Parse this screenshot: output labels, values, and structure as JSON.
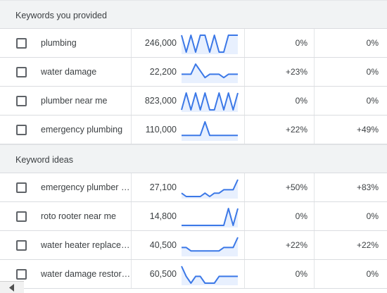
{
  "sections": [
    {
      "title": "Keywords you provided",
      "rows": [
        {
          "keyword": "plumbing",
          "volume": "246,000",
          "change1": "0%",
          "change2": "0%",
          "trend": [
            5,
            0,
            5,
            0,
            5,
            5,
            0,
            5,
            0,
            0,
            5,
            5,
            5
          ]
        },
        {
          "keyword": "water damage",
          "volume": "22,200",
          "change1": "+23%",
          "change2": "0%",
          "trend": [
            2,
            2,
            2,
            5,
            3,
            1,
            2,
            2,
            2,
            1,
            2,
            2,
            2
          ]
        },
        {
          "keyword": "plumber near me",
          "volume": "823,000",
          "change1": "0%",
          "change2": "0%",
          "trend": [
            0,
            5,
            0,
            5,
            0,
            5,
            0,
            0,
            5,
            0,
            5,
            0,
            5
          ]
        },
        {
          "keyword": "emergency plumbing",
          "volume": "110,000",
          "change1": "+22%",
          "change2": "+49%",
          "trend": [
            1,
            1,
            1,
            1,
            1,
            5,
            1,
            1,
            1,
            1,
            1,
            1,
            1
          ]
        }
      ]
    },
    {
      "title": "Keyword ideas",
      "rows": [
        {
          "keyword": "emergency plumber …",
          "volume": "27,100",
          "change1": "+50%",
          "change2": "+83%",
          "trend": [
            1,
            0,
            0,
            0,
            0,
            1,
            0,
            1,
            1,
            2,
            2,
            2,
            5
          ]
        },
        {
          "keyword": "roto rooter near me",
          "volume": "14,800",
          "change1": "0%",
          "change2": "0%",
          "trend": [
            0,
            0,
            0,
            0,
            0,
            0,
            0,
            0,
            0,
            0,
            5,
            0,
            5
          ]
        },
        {
          "keyword": "water heater replace…",
          "volume": "40,500",
          "change1": "+22%",
          "change2": "+22%",
          "trend": [
            2,
            2,
            1,
            1,
            1,
            1,
            1,
            1,
            1,
            2,
            2,
            2,
            5
          ]
        },
        {
          "keyword": "water damage restor…",
          "volume": "60,500",
          "change1": "0%",
          "change2": "0%",
          "trend": [
            5,
            2,
            0,
            2,
            2,
            0,
            0,
            0,
            2,
            2,
            2,
            2,
            2
          ]
        }
      ]
    }
  ],
  "colors": {
    "spark_line": "#3b78e7",
    "spark_fill": "#e8f0fe"
  },
  "icons": {
    "scroll_left": "caret-left-icon"
  }
}
